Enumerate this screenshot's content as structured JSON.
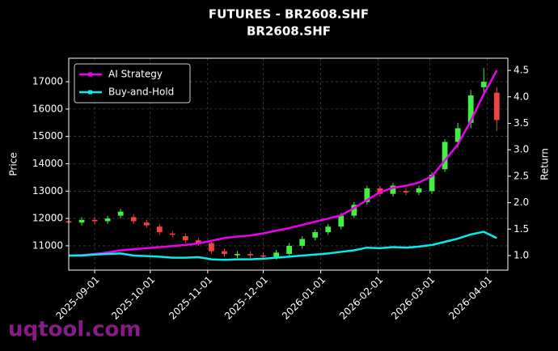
{
  "chart_data": {
    "type": "candlestick",
    "title": "FUTURES - BR2608.SHF",
    "subtitle": "BR2608.SHF",
    "ylabel": "Price",
    "y2label": "Return",
    "watermark": "uqtool.com",
    "x": [
      "2025-08-18",
      "2025-08-25",
      "2025-09-01",
      "2025-09-08",
      "2025-09-15",
      "2025-09-22",
      "2025-09-29",
      "2025-10-06",
      "2025-10-13",
      "2025-10-20",
      "2025-10-27",
      "2025-11-03",
      "2025-11-10",
      "2025-11-17",
      "2025-11-24",
      "2025-12-01",
      "2025-12-08",
      "2025-12-15",
      "2025-12-22",
      "2025-12-29",
      "2026-01-05",
      "2026-01-12",
      "2026-01-19",
      "2026-01-26",
      "2026-02-02",
      "2026-02-09",
      "2026-02-16",
      "2026-02-23",
      "2026-03-02",
      "2026-03-09",
      "2026-03-16",
      "2026-03-23",
      "2026-03-30",
      "2026-04-06"
    ],
    "open": [
      11900,
      11850,
      11950,
      11900,
      12100,
      12050,
      11850,
      11700,
      11450,
      11350,
      11200,
      11100,
      10800,
      10650,
      10700,
      10650,
      10600,
      10700,
      11000,
      11300,
      11500,
      11700,
      12100,
      12600,
      13100,
      12900,
      13000,
      12950,
      13000,
      13800,
      14800,
      15500,
      16800,
      16600
    ],
    "close": [
      11850,
      11950,
      11900,
      12000,
      12250,
      11900,
      11750,
      11500,
      11400,
      11200,
      11100,
      10800,
      10700,
      10700,
      10650,
      10600,
      10750,
      11000,
      11250,
      11500,
      11700,
      12100,
      12500,
      13100,
      12900,
      13200,
      12950,
      13100,
      13600,
      14800,
      15300,
      16500,
      17000,
      15600
    ],
    "high": [
      12000,
      12050,
      12050,
      12100,
      12350,
      12150,
      11950,
      11800,
      11550,
      11450,
      11300,
      11200,
      10900,
      10800,
      10800,
      10750,
      10850,
      11100,
      11350,
      11600,
      11800,
      12200,
      12600,
      13200,
      13200,
      13300,
      13100,
      13200,
      13700,
      14900,
      15500,
      16700,
      17500,
      16800
    ],
    "low": [
      11750,
      11750,
      11800,
      11800,
      12000,
      11800,
      11650,
      11400,
      11300,
      11100,
      11000,
      10700,
      10600,
      10550,
      10550,
      10500,
      10500,
      10600,
      10900,
      11200,
      11400,
      11600,
      12000,
      12500,
      12800,
      12800,
      12850,
      12850,
      12900,
      13700,
      14600,
      15300,
      16600,
      15200
    ],
    "up_color": "#44ee44",
    "down_color": "#ee4444",
    "series": [
      {
        "name": "AI Strategy",
        "color": "#ee00ee",
        "axis": "y2",
        "values": [
          1.0,
          1.01,
          1.03,
          1.06,
          1.1,
          1.12,
          1.14,
          1.16,
          1.18,
          1.2,
          1.23,
          1.28,
          1.33,
          1.36,
          1.38,
          1.42,
          1.47,
          1.52,
          1.58,
          1.64,
          1.7,
          1.76,
          1.9,
          2.05,
          2.2,
          2.28,
          2.32,
          2.38,
          2.5,
          2.8,
          3.1,
          3.55,
          4.05,
          4.5
        ]
      },
      {
        "name": "Buy-and-Hold",
        "color": "#00eeee",
        "axis": "y2",
        "values": [
          1.0,
          1.0,
          1.02,
          1.03,
          1.04,
          1.0,
          0.99,
          0.98,
          0.96,
          0.96,
          0.97,
          0.93,
          0.92,
          0.93,
          0.93,
          0.94,
          0.96,
          0.98,
          1.0,
          1.02,
          1.04,
          1.07,
          1.1,
          1.15,
          1.14,
          1.16,
          1.15,
          1.17,
          1.2,
          1.26,
          1.32,
          1.4,
          1.45,
          1.33
        ]
      }
    ],
    "xlim": [
      "2025-08-18",
      "2026-04-12"
    ],
    "xticks": [
      "2025-09-01",
      "2025-10-01",
      "2025-11-01",
      "2025-12-01",
      "2026-01-01",
      "2026-02-01",
      "2026-03-01",
      "2026-04-01"
    ],
    "ylim": [
      10110,
      17860
    ],
    "yticks": [
      11000,
      12000,
      13000,
      14000,
      15000,
      16000,
      17000
    ],
    "y2lim": [
      0.725,
      4.73
    ],
    "y2ticks": [
      {
        "value": 1,
        "label": "1.0"
      },
      {
        "value": 1.5,
        "label": "1.5"
      },
      {
        "value": 2,
        "label": "2.0"
      },
      {
        "value": 2.5,
        "label": "2.5"
      },
      {
        "value": 3,
        "label": "3.0"
      },
      {
        "value": 3.5,
        "label": "3.5"
      },
      {
        "value": 4,
        "label": "4.0"
      },
      {
        "value": 4.5,
        "label": "4.5"
      }
    ],
    "grid": true,
    "legend": "upper left"
  }
}
